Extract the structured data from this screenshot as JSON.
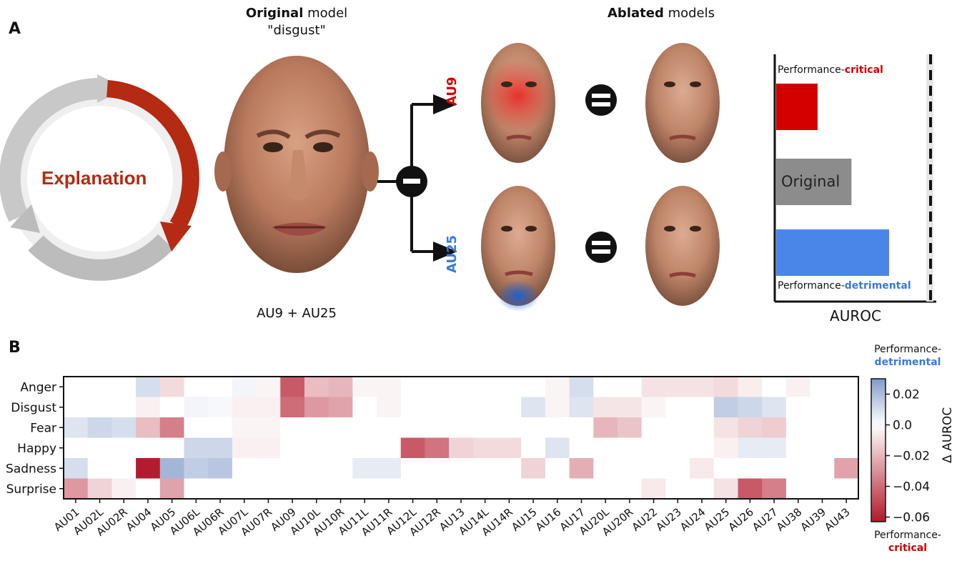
{
  "panel_a": {
    "label": "A",
    "cycle_label": "Explanation",
    "original_title_bold": "Original",
    "original_title_rest": " model",
    "original_subtitle": "\"disgust\"",
    "original_caption": "AU9 + AU25",
    "ablated_title_bold": "Ablated",
    "ablated_title_rest": " models",
    "branch_top_label": "AU9",
    "branch_bottom_label": "AU25",
    "minus_symbol": "−",
    "equals_symbol": "=",
    "bar_chart": {
      "top_label_prefix": "Performance-",
      "top_label_highlight": "critical",
      "middle_label": "Original",
      "bottom_label_prefix": "Performance-",
      "bottom_label_highlight": "detrimental",
      "xlabel": "AUROC",
      "bars": [
        {
          "name": "critical",
          "value": 0.55,
          "color": "#d40000"
        },
        {
          "name": "original",
          "value": 1.0,
          "color": "#8c8c8c"
        },
        {
          "name": "detrimental",
          "value": 1.5,
          "color": "#4a86e8"
        }
      ]
    }
  },
  "panel_b": {
    "label": "B",
    "colorbar": {
      "top_label_prefix": "Performance-",
      "top_label_highlight": "detrimental",
      "bottom_label_prefix": "Performance-",
      "bottom_label_highlight": "critical",
      "title": "Δ AUROC",
      "range": [
        -0.063,
        0.03
      ],
      "ticks": [
        {
          "value": 0.02,
          "label": "0.02"
        },
        {
          "value": 0.0,
          "label": "0.0"
        },
        {
          "value": -0.02,
          "label": "−0.02"
        },
        {
          "value": -0.04,
          "label": "−0.04"
        },
        {
          "value": -0.06,
          "label": "−0.06"
        }
      ]
    }
  },
  "chart_data": {
    "type": "heatmap",
    "rows": [
      "Anger",
      "Disgust",
      "Fear",
      "Happy",
      "Sadness",
      "Surprise"
    ],
    "columns": [
      "AU01",
      "AU02L",
      "AU02R",
      "AU04",
      "AU05",
      "AU06L",
      "AU06R",
      "AU07L",
      "AU07R",
      "AU09",
      "AU10L",
      "AU10R",
      "AU11L",
      "AU11R",
      "AU12L",
      "AU12R",
      "AU13",
      "AU14L",
      "AU14R",
      "AU15",
      "AU16",
      "AU17",
      "AU20L",
      "AU20R",
      "AU22",
      "AU23",
      "AU24",
      "AU25",
      "AU26",
      "AU27",
      "AU38",
      "AU39",
      "AU43"
    ],
    "values": [
      [
        0,
        0,
        0,
        0.01,
        -0.01,
        0,
        0,
        0.003,
        -0.003,
        -0.045,
        -0.018,
        -0.02,
        -0.003,
        -0.003,
        0,
        0,
        0,
        0,
        0,
        0,
        -0.003,
        0.01,
        0,
        0,
        -0.008,
        -0.008,
        -0.008,
        -0.01,
        -0.005,
        0,
        -0.004,
        0,
        0
      ],
      [
        0,
        0,
        0,
        -0.004,
        0,
        0.003,
        0.002,
        -0.004,
        -0.004,
        -0.04,
        -0.028,
        -0.025,
        0,
        -0.003,
        0,
        0,
        0,
        0,
        0,
        0.008,
        -0.003,
        0.008,
        -0.007,
        -0.007,
        -0.003,
        0,
        0,
        0.015,
        0.012,
        0.008,
        0,
        0,
        0
      ],
      [
        0.008,
        0.012,
        0.01,
        -0.018,
        -0.035,
        0,
        0,
        -0.003,
        -0.003,
        0,
        0,
        0,
        0,
        0,
        0,
        0,
        0,
        0,
        0,
        0,
        0,
        0,
        -0.02,
        -0.016,
        0,
        0,
        0,
        -0.008,
        -0.012,
        -0.014,
        0,
        0,
        0
      ],
      [
        0,
        0,
        0,
        0,
        0,
        0.012,
        0.012,
        -0.004,
        -0.004,
        0,
        0,
        0,
        0,
        0,
        -0.045,
        -0.038,
        -0.012,
        -0.01,
        -0.01,
        0,
        0.008,
        0,
        0,
        0,
        0,
        0,
        0,
        -0.004,
        0.006,
        0.006,
        0,
        0,
        0
      ],
      [
        0.01,
        0,
        0,
        -0.062,
        0.022,
        0.015,
        0.017,
        0,
        0,
        0,
        0,
        0,
        0.006,
        0.006,
        0,
        0,
        0,
        0,
        0,
        -0.012,
        0,
        -0.022,
        0,
        0,
        0,
        0,
        -0.006,
        0,
        0,
        0,
        0,
        0,
        -0.025
      ],
      [
        -0.028,
        -0.012,
        -0.004,
        0,
        -0.025,
        0,
        0,
        0,
        0,
        0,
        0,
        0,
        0,
        0,
        0,
        0,
        0,
        0,
        0,
        0,
        0,
        0,
        0,
        0,
        -0.006,
        0,
        0,
        -0.008,
        -0.045,
        -0.035,
        0,
        0,
        0
      ]
    ],
    "colormap": "RdBu-like diverging, red = negative, blue = positive",
    "vmin": -0.063,
    "vmax": 0.03
  }
}
